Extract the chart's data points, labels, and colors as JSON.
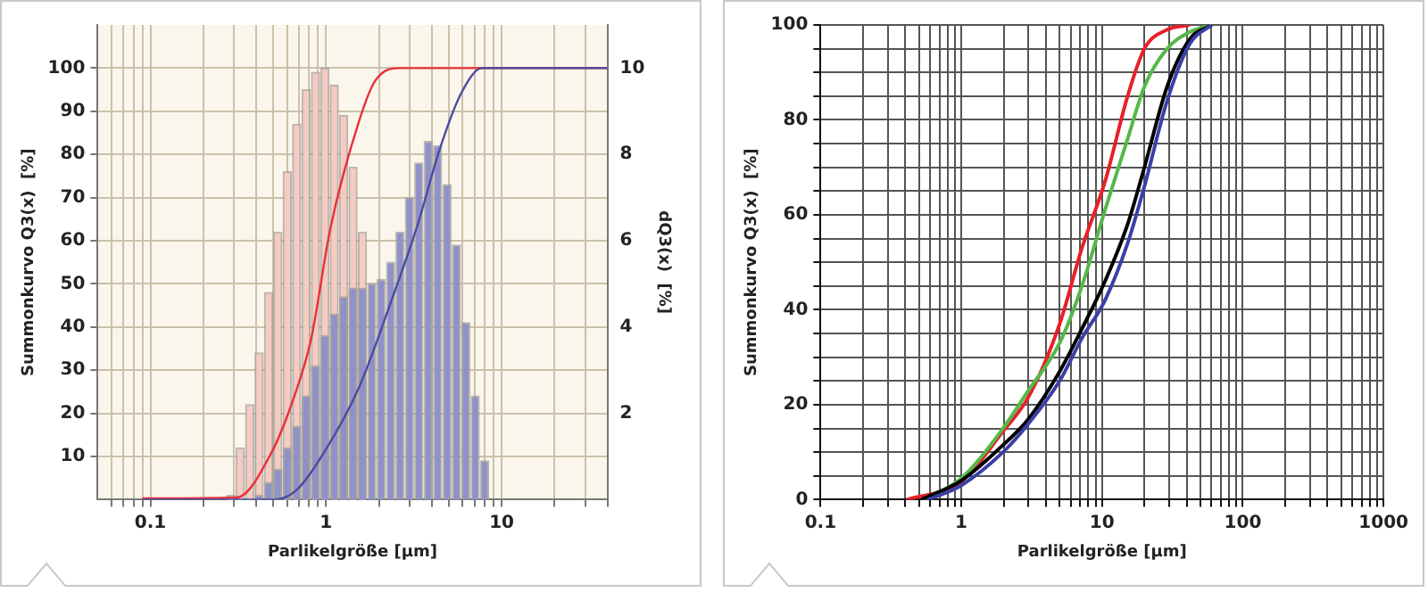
{
  "chart_data": [
    {
      "type": "histogram",
      "xlabel": "Parlikelgröße [µm]",
      "ylabel": "Summonkurvo Q3(x)  [%]",
      "y2label": "dQ3(x)  [%]",
      "log": "x",
      "grid": true,
      "marker": "none",
      "xlim": [
        0.05,
        40
      ],
      "xticks": [
        {
          "value": 0.06,
          "label": null
        },
        {
          "value": 0.07,
          "label": null
        },
        {
          "value": 0.08,
          "label": null
        },
        {
          "value": 0.09,
          "label": null
        },
        0.1,
        {
          "value": 0.2,
          "label": null
        },
        {
          "value": 0.3,
          "label": null
        },
        {
          "value": 0.4,
          "label": null
        },
        {
          "value": 0.5,
          "label": null
        },
        {
          "value": 0.6,
          "label": null
        },
        {
          "value": 0.7,
          "label": null
        },
        {
          "value": 0.8,
          "label": null
        },
        {
          "value": 0.9,
          "label": null
        },
        1,
        {
          "value": 2,
          "label": null
        },
        {
          "value": 3,
          "label": null
        },
        {
          "value": 4,
          "label": null
        },
        {
          "value": 5,
          "label": null
        },
        {
          "value": 6,
          "label": null
        },
        {
          "value": 7,
          "label": null
        },
        {
          "value": 8,
          "label": null
        },
        {
          "value": 9,
          "label": null
        },
        10,
        {
          "value": 20,
          "label": null
        },
        {
          "value": 30,
          "label": null
        },
        {
          "value": 40,
          "label": null
        }
      ],
      "ylim": [
        0,
        110
      ],
      "yticks": [
        10,
        20,
        30,
        40,
        50,
        60,
        70,
        80,
        90,
        100
      ],
      "y2lim": [
        0,
        11
      ],
      "y2ticks": [
        2,
        4,
        6,
        8,
        10
      ],
      "bins": [
        0.27,
        0.305,
        0.345,
        0.391,
        0.442,
        0.5,
        0.565,
        0.64,
        0.723,
        0.818,
        0.926,
        1.047,
        1.184,
        1.339,
        1.515,
        1.714,
        1.938,
        2.192,
        2.48,
        2.805,
        3.173,
        3.589,
        4.059,
        4.591,
        5.193,
        5.874,
        6.644,
        7.515,
        8.5
      ],
      "series": [
        {
          "axis": "y2",
          "color": "#f5cbc2",
          "values": [
            0.1,
            1.2,
            2.2,
            3.4,
            4.8,
            6.2,
            7.6,
            8.7,
            9.5,
            9.9,
            10.0,
            9.6,
            8.9,
            7.7,
            6.2,
            null,
            null,
            null,
            null,
            null,
            null,
            null,
            null,
            null,
            null,
            null,
            null,
            null
          ]
        },
        {
          "axis": "y2",
          "color": "#8f91c9",
          "values": [
            0,
            0,
            0,
            0.1,
            0.4,
            0.7,
            1.2,
            1.7,
            2.4,
            3.1,
            3.8,
            4.3,
            4.7,
            4.9,
            4.9,
            5.0,
            5.1,
            5.5,
            6.2,
            7.0,
            7.8,
            8.3,
            8.2,
            7.3,
            5.9,
            4.1,
            2.4,
            0.9
          ]
        },
        {
          "type": "line",
          "color": "#e8303a",
          "x": [
            0.09,
            0.31,
            0.49,
            0.66,
            0.82,
            1.06,
            1.55,
            1.9,
            2.6,
            40
          ],
          "values": [
            0.3,
            0.5,
            11,
            24,
            37,
            63,
            88,
            97,
            100,
            100
          ]
        },
        {
          "type": "line",
          "color": "#4b4ba0",
          "x": [
            0.09,
            0.5,
            0.67,
            1.01,
            1.54,
            2.35,
            3.34,
            4.42,
            5.85,
            7.74,
            40
          ],
          "values": [
            0,
            0,
            2,
            12,
            26,
            46,
            64,
            81,
            94,
            100,
            100
          ]
        }
      ]
    },
    {
      "type": "line",
      "xlabel": "Parlikelgröße [µm]",
      "ylabel": "Summonkurvo Q3(x)  [%]",
      "log": "x",
      "grid": true,
      "marker": "none",
      "xlim": [
        0.1,
        1000
      ],
      "xticks": [
        0.1,
        {
          "value": 0.2,
          "label": null
        },
        {
          "value": 0.3,
          "label": null
        },
        {
          "value": 0.4,
          "label": null
        },
        {
          "value": 0.5,
          "label": null
        },
        {
          "value": 0.6,
          "label": null
        },
        {
          "value": 0.7,
          "label": null
        },
        {
          "value": 0.8,
          "label": null
        },
        {
          "value": 0.9,
          "label": null
        },
        1,
        {
          "value": 2,
          "label": null
        },
        {
          "value": 3,
          "label": null
        },
        {
          "value": 4,
          "label": null
        },
        {
          "value": 5,
          "label": null
        },
        {
          "value": 6,
          "label": null
        },
        {
          "value": 7,
          "label": null
        },
        {
          "value": 8,
          "label": null
        },
        {
          "value": 9,
          "label": null
        },
        10,
        {
          "value": 20,
          "label": null
        },
        {
          "value": 30,
          "label": null
        },
        {
          "value": 40,
          "label": null
        },
        {
          "value": 50,
          "label": null
        },
        {
          "value": 60,
          "label": null
        },
        {
          "value": 70,
          "label": null
        },
        {
          "value": 80,
          "label": null
        },
        {
          "value": 90,
          "label": null
        },
        100,
        {
          "value": 200,
          "label": null
        },
        {
          "value": 300,
          "label": null
        },
        {
          "value": 400,
          "label": null
        },
        {
          "value": 500,
          "label": null
        },
        {
          "value": 600,
          "label": null
        },
        {
          "value": 700,
          "label": null
        },
        {
          "value": 800,
          "label": null
        },
        {
          "value": 900,
          "label": null
        },
        1000
      ],
      "ylim": [
        0,
        100
      ],
      "yticks": [
        0,
        {
          "value": 5,
          "label": null
        },
        {
          "value": 10,
          "label": null
        },
        {
          "value": 15,
          "label": null
        },
        20,
        {
          "value": 25,
          "label": null
        },
        {
          "value": 30,
          "label": null
        },
        {
          "value": 35,
          "label": null
        },
        40,
        {
          "value": 45,
          "label": null
        },
        {
          "value": 50,
          "label": null
        },
        {
          "value": 55,
          "label": null
        },
        60,
        {
          "value": 65,
          "label": null
        },
        {
          "value": 70,
          "label": null
        },
        {
          "value": 75,
          "label": null
        },
        80,
        {
          "value": 85,
          "label": null
        },
        {
          "value": 90,
          "label": null
        },
        {
          "value": 95,
          "label": null
        },
        100
      ],
      "series": [
        {
          "color": "#e8202a",
          "x": [
            0.41,
            1,
            1.98,
            3,
            5,
            7.2,
            10.5,
            15.2,
            20,
            29,
            42
          ],
          "values": [
            0,
            3.8,
            14.4,
            21.6,
            37,
            53,
            67,
            85,
            95,
            99,
            100
          ]
        },
        {
          "color": "#55b848",
          "x": [
            0.54,
            1,
            1.98,
            3,
            5,
            7.2,
            10.5,
            15.2,
            20,
            29,
            42,
            60
          ],
          "values": [
            0,
            4.5,
            15,
            23,
            33,
            45,
            61,
            76,
            87,
            95,
            98.5,
            100
          ]
        },
        {
          "color": "#000000",
          "x": [
            0.52,
            1,
            1.98,
            3,
            5,
            7.2,
            10.5,
            15.2,
            20,
            29,
            42,
            60
          ],
          "values": [
            0,
            4,
            11.5,
            17,
            27,
            36,
            46,
            58,
            70,
            87,
            97,
            100
          ]
        },
        {
          "color": "#3b3fa8",
          "x": [
            0.58,
            1,
            1.98,
            3,
            5,
            7.2,
            10.5,
            15.2,
            20,
            29,
            42,
            60
          ],
          "values": [
            0,
            3,
            10,
            16,
            25,
            34,
            42,
            54,
            66,
            84,
            96,
            100
          ]
        }
      ]
    }
  ]
}
